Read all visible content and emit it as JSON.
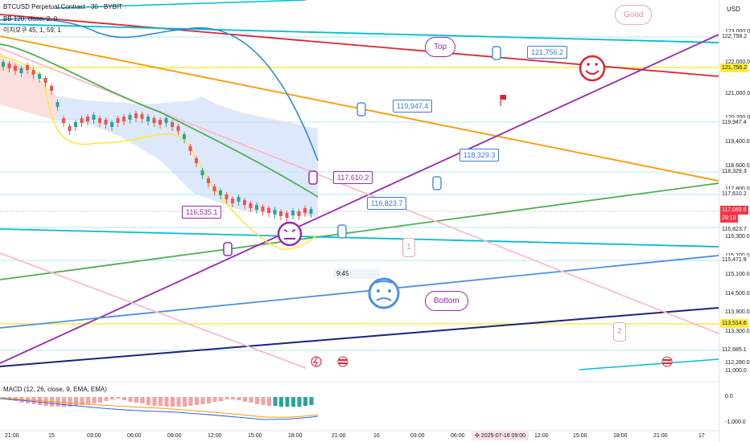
{
  "header": {
    "symbol": "BTCUSD Perpetual Contract · 30 · BYBIT",
    "indicator_bb": "BB 120, close, 2, 0",
    "indicator_ichimoku": "이치모쿠 45, 1, 59, 1",
    "indicator_macd": "MACD (12, 26, close, 9, EMA, EMA)"
  },
  "currency": "USD",
  "price_axis": {
    "ticks": [
      "123,000.0",
      "122,000.0",
      "121,000.0",
      "120,200.0",
      "119,400.0",
      "118,600.0",
      "117,800.0",
      "116,300.0",
      "115,700.0",
      "115,100.0",
      "114,500.0",
      "113,900.0",
      "113,300.0",
      "112,280.0",
      "11,000.0"
    ],
    "tags": [
      {
        "text": "122,758.2",
        "bg": "#ffffff",
        "fg": "#131722"
      },
      {
        "text": "121,756.2",
        "bg": "#ffeb3b",
        "fg": "#131722"
      },
      {
        "text": "119,947.4",
        "bg": "#ffffff",
        "fg": "#131722"
      },
      {
        "text": "118,329.3",
        "bg": "#ffffff",
        "fg": "#131722"
      },
      {
        "text": "117,610.2",
        "bg": "#ffffff",
        "fg": "#131722"
      },
      {
        "text": "117,062.6",
        "bg": "#f23645",
        "fg": "#ffffff"
      },
      {
        "text": "29:10",
        "bg": "#f23645",
        "fg": "#ffffff"
      },
      {
        "text": "116,823.7",
        "bg": "#ffffff",
        "fg": "#131722"
      },
      {
        "text": "115,471.8",
        "bg": "#ffffff",
        "fg": "#131722"
      },
      {
        "text": "113,514.6",
        "bg": "#ffeb3b",
        "fg": "#131722"
      },
      {
        "text": "112,685.1",
        "bg": "#ffffff",
        "fg": "#131722"
      }
    ],
    "macd_ticks": [
      "0.0",
      "-1,000.0"
    ]
  },
  "time_axis": [
    "21:00",
    "15",
    "03:00",
    "06:00",
    "09:00",
    "12:00",
    "15:00",
    "18:00",
    "21:00",
    "16",
    "03:00",
    "06:00",
    "12:00",
    "15:00",
    "18:00",
    "21:00",
    "17"
  ],
  "time_highlight": "✣ 2025-07-16  09:00",
  "callouts": [
    "121,756.2",
    "119,947.4",
    "118,329.3",
    "117,610.2",
    "116,823.7",
    "116,535.1"
  ],
  "annotations": {
    "good": "Good",
    "top": "Top",
    "bottom": "Bottom",
    "one": "1",
    "two": "2",
    "timer": "9:45"
  },
  "colors": {
    "bull": "#26a69a",
    "bear": "#ef5350",
    "accent_purple": "#9c27b0",
    "orange": "#ff9800",
    "cyan": "#00bcd4"
  }
}
